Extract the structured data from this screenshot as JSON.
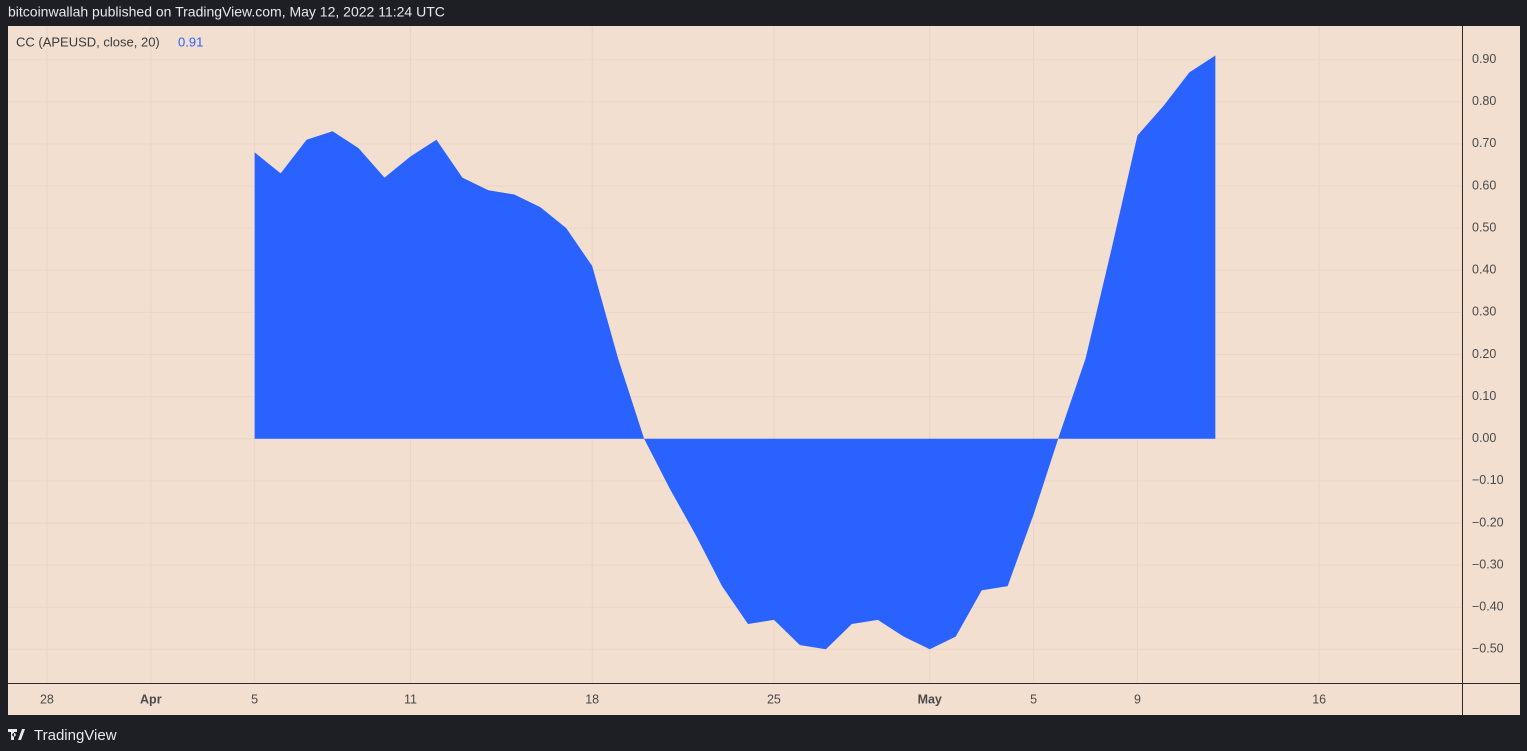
{
  "header": "bitcoinwallah published on TradingView.com, May 12, 2022 11:24 UTC",
  "footer": "TradingView",
  "chart_data": {
    "type": "area",
    "categories": [
      null,
      "28",
      null,
      null,
      null,
      "Apr",
      null,
      null,
      null,
      "5",
      null,
      null,
      null,
      null,
      null,
      "11",
      null,
      null,
      null,
      null,
      null,
      null,
      "18",
      null,
      null,
      null,
      null,
      null,
      null,
      "25",
      null,
      null,
      null,
      null,
      null,
      "May",
      null,
      null,
      null,
      "5",
      null,
      null,
      null,
      "9",
      null,
      null,
      null,
      null,
      null,
      null,
      "16",
      null,
      null,
      null,
      null,
      null
    ],
    "series": [
      {
        "name": "CC (APEUSD, close, 20)",
        "color": "#2962ff",
        "values": [
          null,
          null,
          null,
          null,
          null,
          null,
          null,
          null,
          null,
          0.68,
          0.63,
          0.71,
          0.73,
          0.69,
          0.62,
          0.67,
          0.71,
          0.62,
          0.59,
          0.58,
          0.55,
          0.5,
          0.41,
          0.19,
          0.0,
          -0.12,
          -0.23,
          -0.35,
          -0.44,
          -0.43,
          -0.49,
          -0.5,
          -0.44,
          -0.43,
          -0.47,
          -0.5,
          -0.47,
          -0.36,
          -0.35,
          -0.18,
          0.01,
          0.19,
          0.45,
          0.72,
          0.79,
          0.87,
          0.91,
          null,
          null,
          null,
          null,
          null,
          null,
          null,
          null,
          null
        ]
      }
    ],
    "ylim": [
      -0.58,
      0.98
    ],
    "yticks": [
      {
        "value": 0.9,
        "label": "0.90"
      },
      {
        "value": 0.8,
        "label": "0.80"
      },
      {
        "value": 0.7,
        "label": "0.70"
      },
      {
        "value": 0.6,
        "label": "0.60"
      },
      {
        "value": 0.5,
        "label": "0.50"
      },
      {
        "value": 0.4,
        "label": "0.40"
      },
      {
        "value": 0.3,
        "label": "0.30"
      },
      {
        "value": 0.2,
        "label": "0.20"
      },
      {
        "value": 0.1,
        "label": "0.10"
      },
      {
        "value": 0,
        "label": "0.00"
      },
      {
        "value": -0.1,
        "label": "−0.10"
      },
      {
        "value": -0.2,
        "label": "−0.20"
      },
      {
        "value": -0.3,
        "label": "−0.30"
      },
      {
        "value": -0.4,
        "label": "−0.40"
      },
      {
        "value": -0.5,
        "label": "−0.50"
      }
    ],
    "grid": true
  }
}
